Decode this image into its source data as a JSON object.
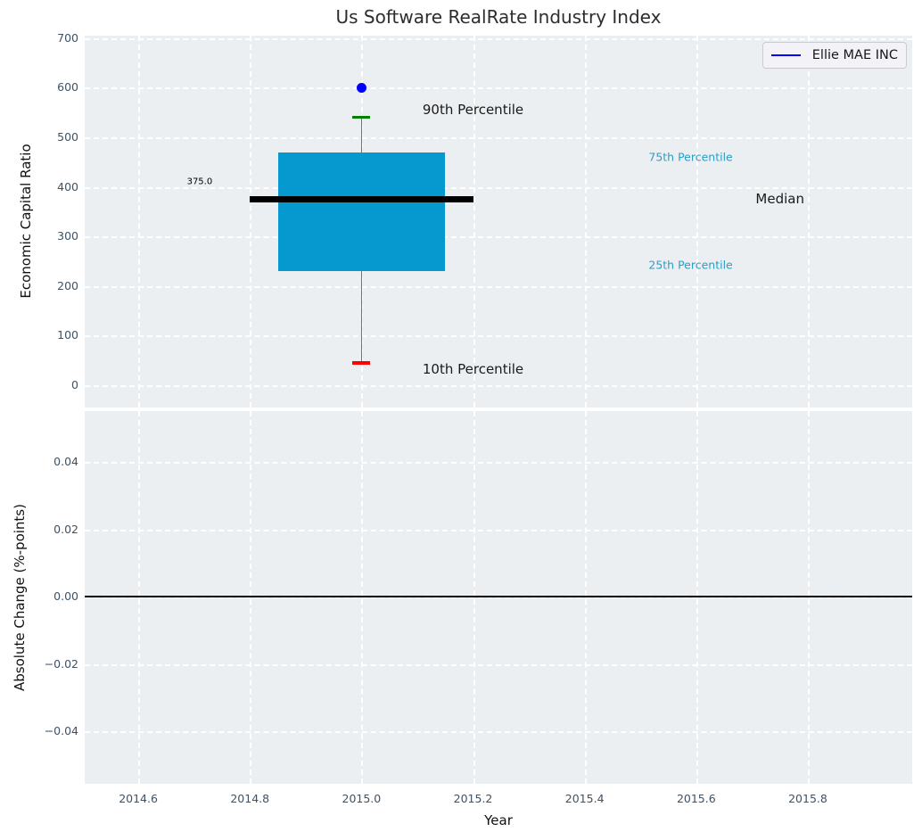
{
  "figure_title": "Us Software RealRate Industry Index",
  "colors": {
    "plot_background": "#eceff1",
    "grid": "#ffffff",
    "box_fill": "#0699d0",
    "median_line": "#000000",
    "whisker": "#737373",
    "upper_cap": "#008000",
    "lower_cap": "#ff0000",
    "company_point": "#0000ff",
    "tick_label": "#3e5266",
    "percentile_label_blue": "#2a9ec7",
    "annotation_dark": "#1a1a1a",
    "zero_line": "#000000"
  },
  "chart_data": [
    {
      "type": "boxplot",
      "title": "Us Software RealRate Industry Index",
      "ylabel": "Economic Capital Ratio",
      "xlim": [
        2014.504,
        2015.987
      ],
      "ylim": [
        -45,
        705
      ],
      "ytick_values": [
        700,
        600,
        500,
        400,
        300,
        200,
        100,
        0
      ],
      "ytick_labels": [
        "700",
        "600",
        "500",
        "400",
        "300",
        "200",
        "100",
        "0"
      ],
      "xtick_values": [
        2014.6,
        2014.8,
        2015.0,
        2015.2,
        2015.4,
        2015.6,
        2015.8
      ],
      "grid": true,
      "legend": {
        "position": "upper right",
        "entries": [
          {
            "label": "Ellie MAE INC",
            "line_color": "#0000ff"
          }
        ]
      },
      "box": {
        "x": 2015.0,
        "p10": 45,
        "p25": 230,
        "median": 375,
        "p75": 470,
        "p90": 540,
        "box_x_left": 2014.85,
        "box_x_right": 2015.15,
        "median_x_left": 2014.8,
        "median_x_right": 2015.2,
        "cap_half_width": 0.016,
        "median_value_label": "375.0"
      },
      "company_point": {
        "name": "Ellie MAE INC",
        "x": 2015.0,
        "y": 600
      },
      "annotations": [
        {
          "text": "375.0",
          "x": 2014.71,
          "y": 410,
          "color": "#000000",
          "size": 10
        },
        {
          "text": "90th Percentile",
          "x": 2015.2,
          "y": 555,
          "color": "#1a1a1a",
          "size": 15
        },
        {
          "text": "10th Percentile",
          "x": 2015.2,
          "y": 33,
          "color": "#1a1a1a",
          "size": 15
        },
        {
          "text": "75th Percentile",
          "x": 2015.59,
          "y": 460,
          "color": "#2a9ec7",
          "size": 12.5
        },
        {
          "text": "Median",
          "x": 2015.75,
          "y": 376,
          "color": "#1a1a1a",
          "size": 15
        },
        {
          "text": "25th Percentile",
          "x": 2015.59,
          "y": 243,
          "color": "#2a9ec7",
          "size": 12.5
        }
      ]
    },
    {
      "type": "line",
      "ylabel": "Absolute Change (%-points)",
      "xlabel": "Year",
      "xlim": [
        2014.504,
        2015.987
      ],
      "ylim": [
        -0.0556,
        0.0551
      ],
      "ytick_values": [
        0.04,
        0.02,
        0.0,
        -0.02,
        -0.04
      ],
      "ytick_labels": [
        "0.04",
        "0.02",
        "0.00",
        "−0.02",
        "−0.04"
      ],
      "xtick_values": [
        2014.6,
        2014.8,
        2015.0,
        2015.2,
        2015.4,
        2015.6,
        2015.8
      ],
      "xtick_labels": [
        "2014.6",
        "2014.8",
        "2015.0",
        "2015.2",
        "2015.4",
        "2015.6",
        "2015.8"
      ],
      "grid": true,
      "zero_line": 0.0,
      "series": []
    }
  ]
}
